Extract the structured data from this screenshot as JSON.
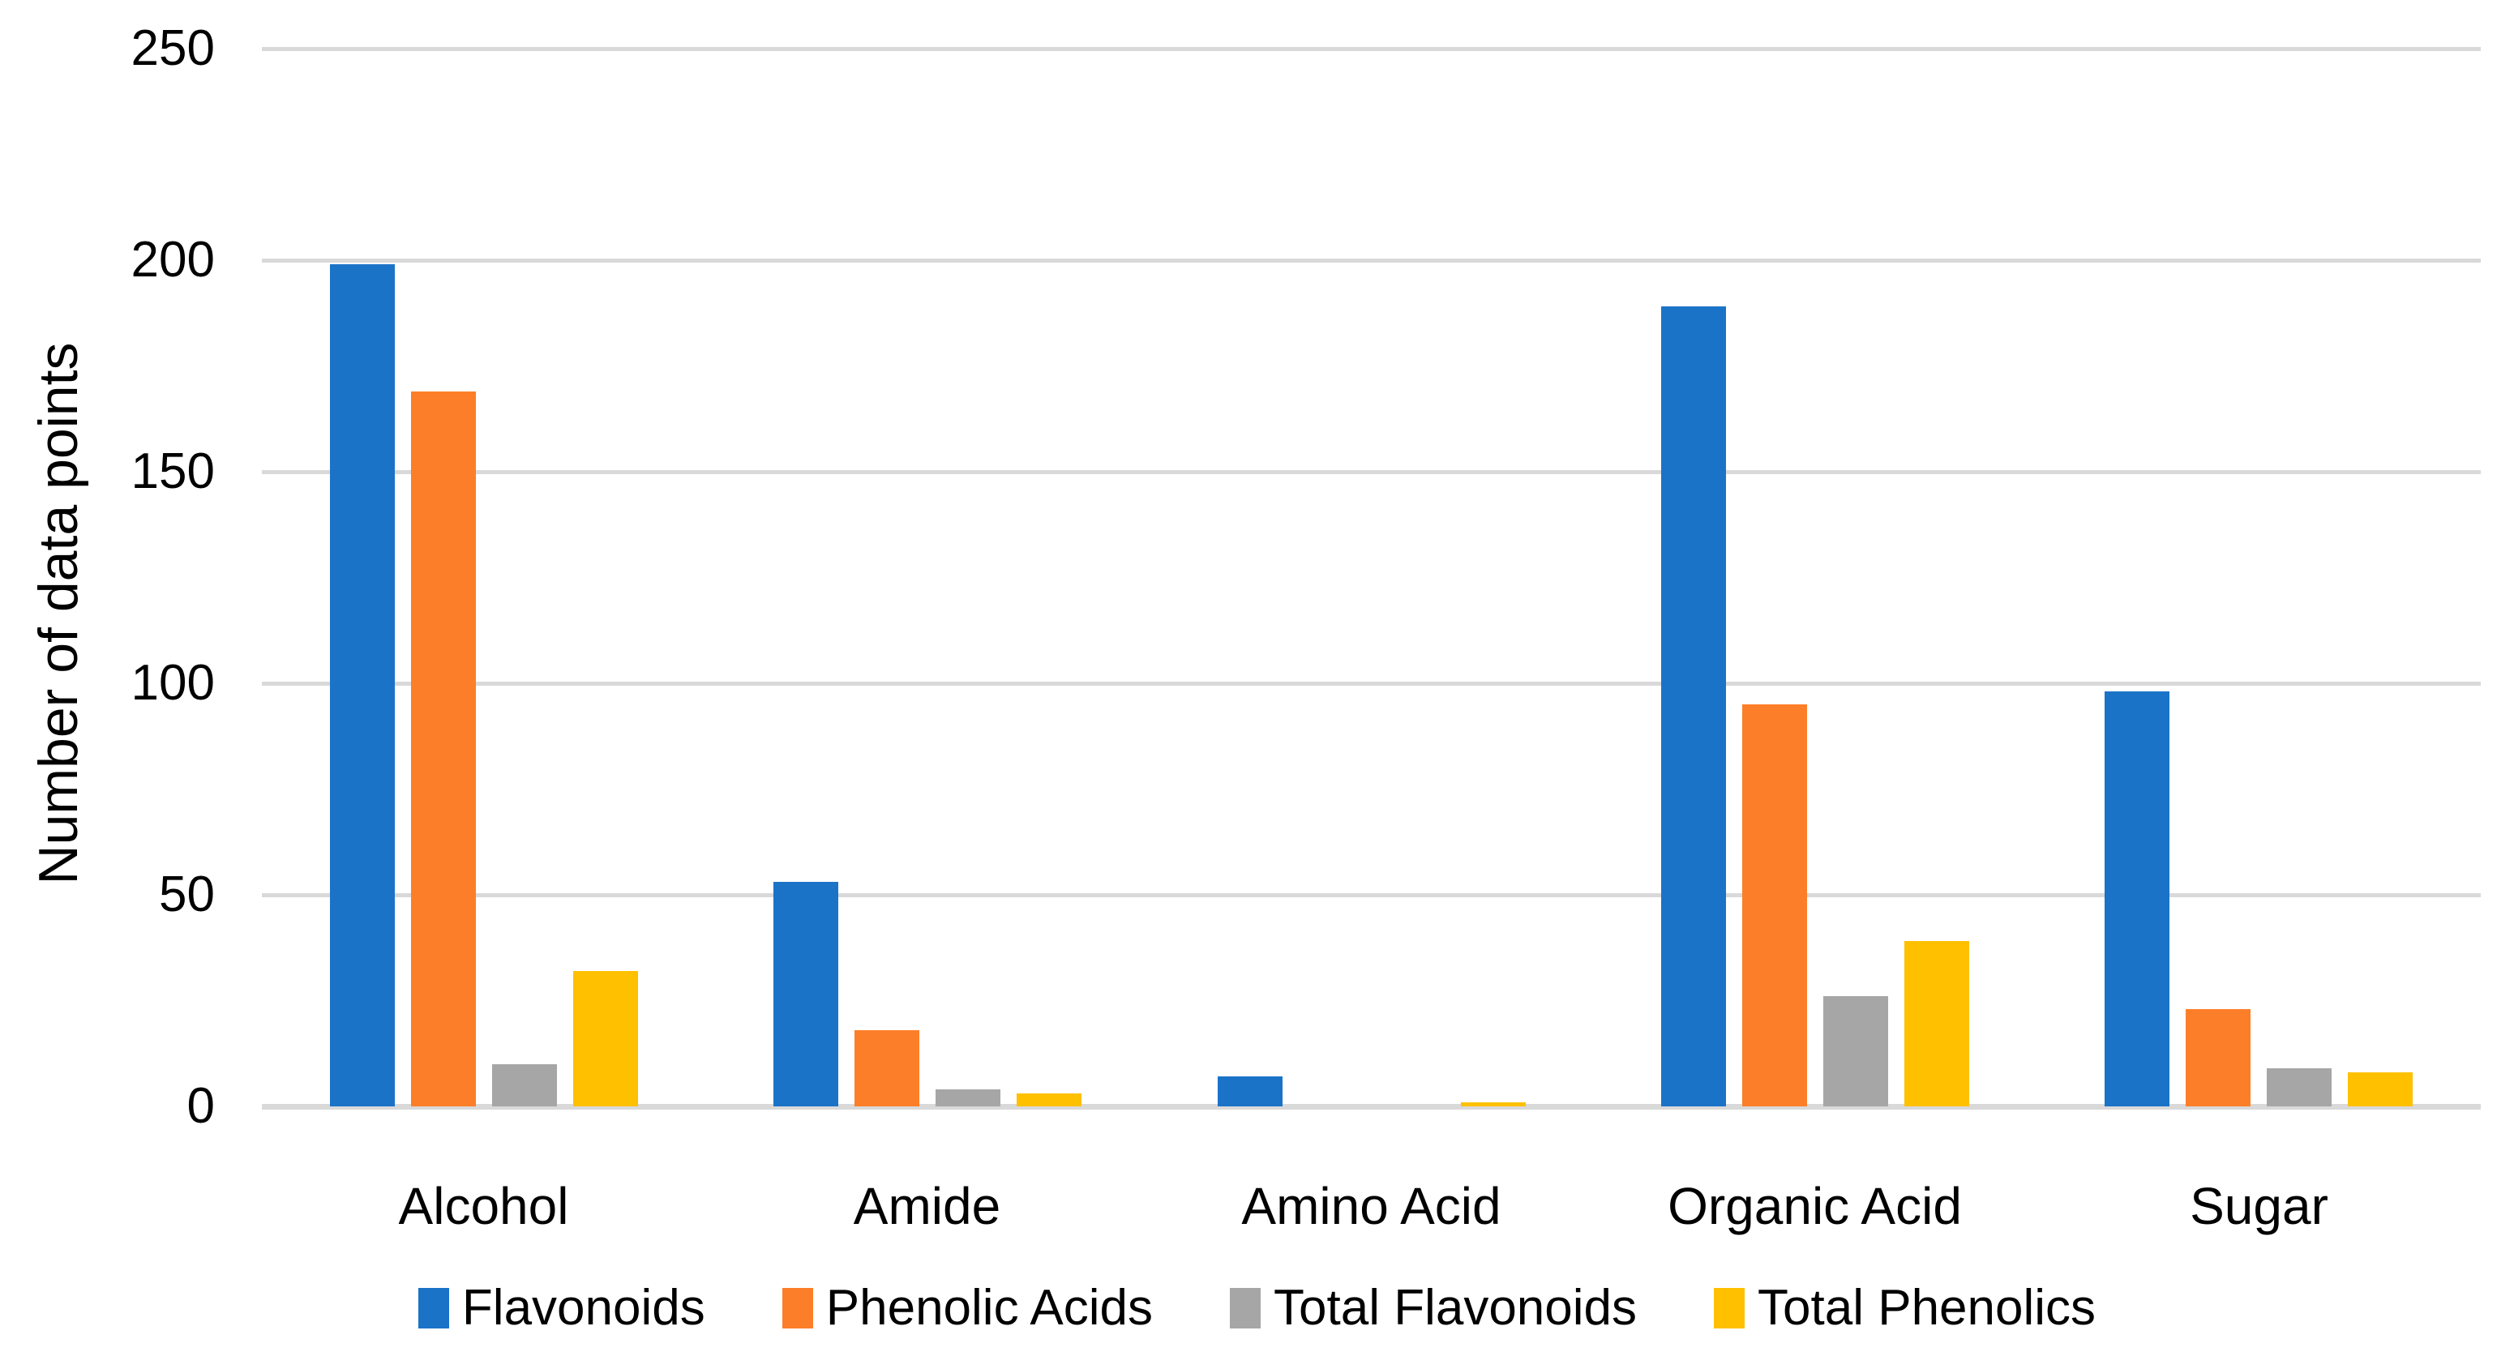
{
  "chart_data": {
    "type": "bar",
    "title": "",
    "xlabel": "",
    "ylabel": "Number of data points",
    "ylim": [
      0,
      250
    ],
    "yticks": [
      0,
      50,
      100,
      150,
      200,
      250
    ],
    "grid": "horizontal",
    "legend_position": "bottom",
    "background_color": "#FFFFFF",
    "gridline_color": "#D9D9D9",
    "text_color": "#000000",
    "categories": [
      "Alcohol",
      "Amide",
      "Amino Acid",
      "Organic Acid",
      "Sugar"
    ],
    "series": [
      {
        "name": "Flavonoids",
        "color": "#1B73C8",
        "values": [
          199,
          53,
          7,
          189,
          98
        ]
      },
      {
        "name": "Phenolic Acids",
        "color": "#FD7E28",
        "values": [
          169,
          18,
          0,
          95,
          23
        ]
      },
      {
        "name": "Total Flavonoids",
        "color": "#A6A6A6",
        "values": [
          10,
          4,
          0,
          26,
          9
        ]
      },
      {
        "name": "Total Phenolics",
        "color": "#FFC000",
        "values": [
          32,
          3,
          1,
          39,
          8
        ]
      }
    ]
  }
}
